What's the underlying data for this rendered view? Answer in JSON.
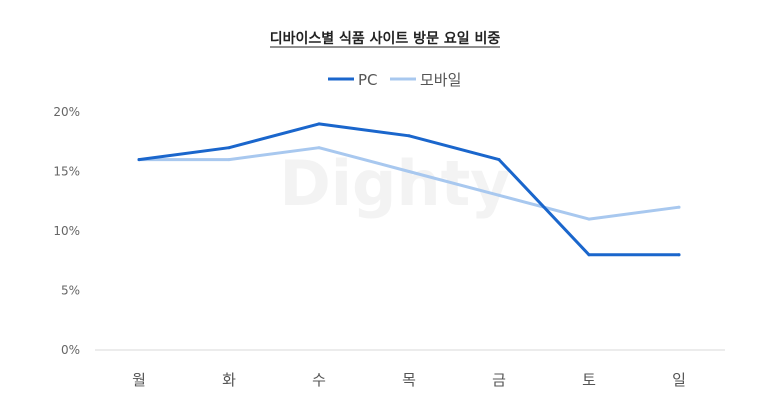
{
  "chart_data": {
    "type": "line",
    "title": "디바이스별 식품 사이트 방문 요일 비중",
    "watermark": "Dighty",
    "categories": [
      "월",
      "화",
      "수",
      "목",
      "금",
      "토",
      "일"
    ],
    "y_ticks": [
      "0%",
      "5%",
      "10%",
      "15%",
      "20%"
    ],
    "ylim": [
      0,
      20
    ],
    "y_unit": "%",
    "grid": false,
    "legend_position": "top-center",
    "series": [
      {
        "name": "PC",
        "values": [
          16,
          17,
          19,
          18,
          16,
          8,
          8
        ],
        "color": "#1a66cc"
      },
      {
        "name": "모바일",
        "values": [
          16,
          16,
          17,
          15,
          13,
          11,
          12
        ],
        "color": "#a8c8ef"
      }
    ]
  }
}
